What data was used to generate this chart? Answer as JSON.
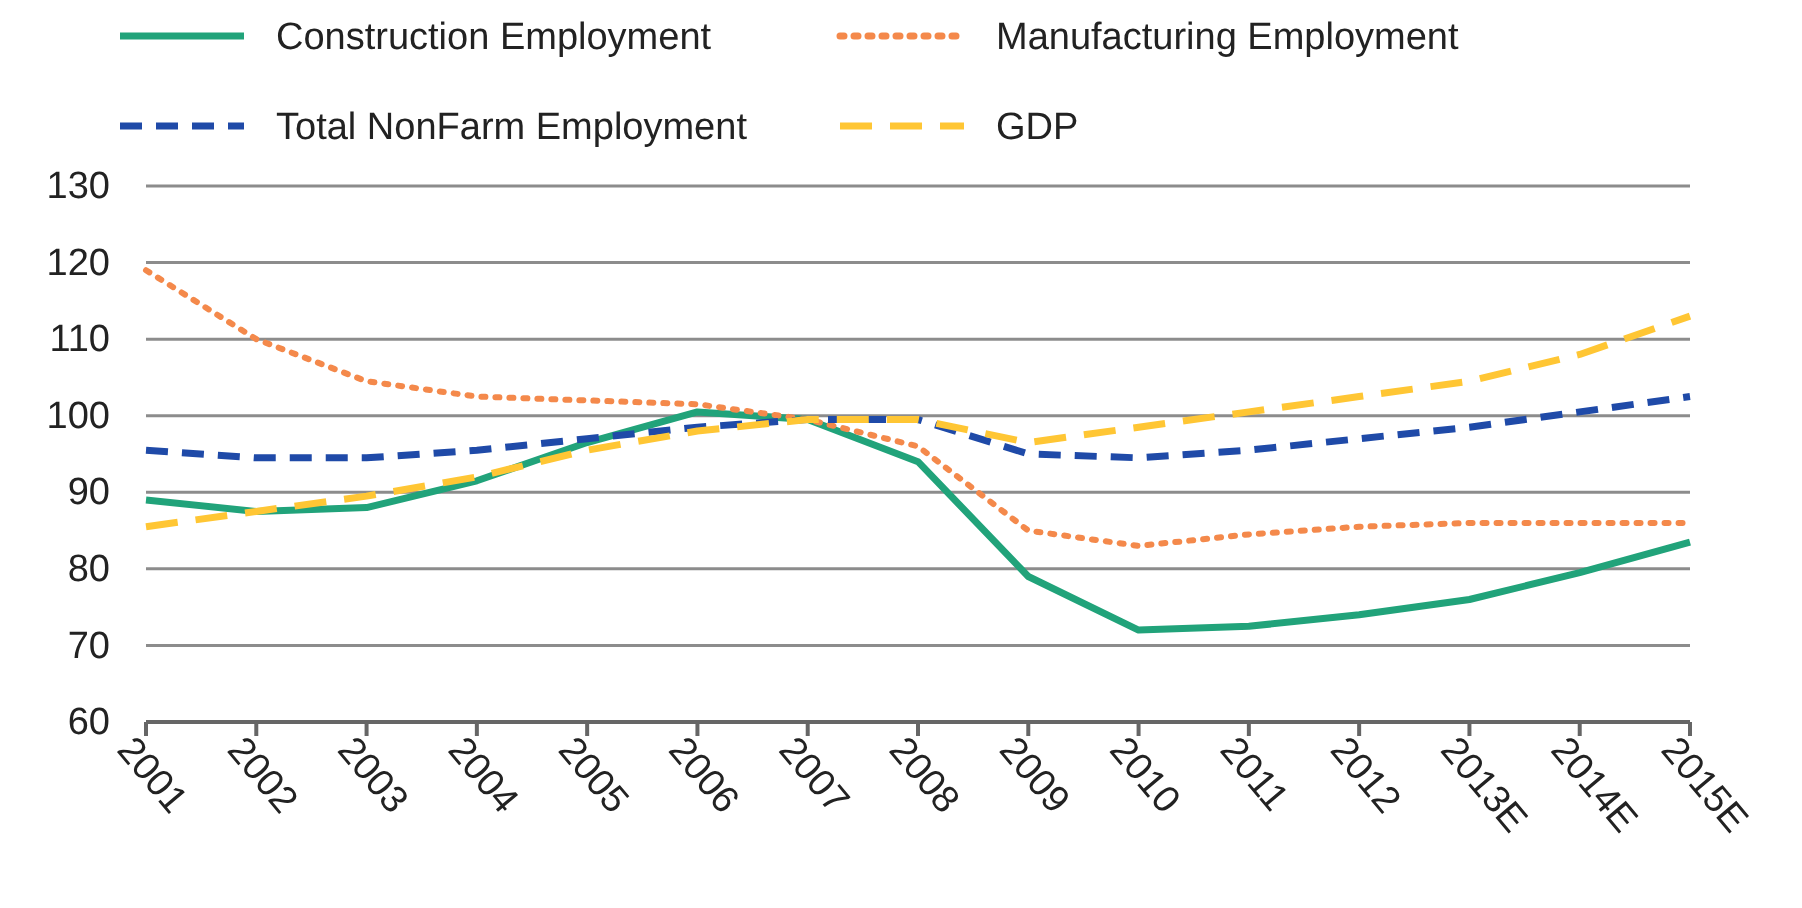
{
  "chart_data": {
    "type": "line",
    "categories": [
      "2001",
      "2002",
      "2003",
      "2004",
      "2005",
      "2006",
      "2007",
      "2008",
      "2009",
      "2010",
      "2011",
      "2012",
      "2013E",
      "2014E",
      "2015E"
    ],
    "series": [
      {
        "name": "Construction Employment",
        "color": "#21a37a",
        "line_style": "solid",
        "values": [
          89,
          87.5,
          88,
          91.5,
          96.5,
          100.5,
          99.5,
          94,
          79,
          72,
          72.5,
          74,
          76,
          79.5,
          83.5
        ]
      },
      {
        "name": "Manufacturing Employment",
        "color": "#f4894b",
        "line_style": "dotted",
        "values": [
          119,
          110,
          104.5,
          102.5,
          102,
          101.5,
          99.5,
          96,
          85,
          83,
          84.5,
          85.5,
          86,
          86,
          86
        ]
      },
      {
        "name": "Total NonFarm Employment",
        "color": "#1f4aa8",
        "line_style": "dashed",
        "values": [
          95.5,
          94.5,
          94.5,
          95.5,
          97,
          98.5,
          99.5,
          99.5,
          95,
          94.5,
          95.5,
          97,
          98.5,
          100.5,
          102.5
        ]
      },
      {
        "name": "GDP",
        "color": "#ffc634",
        "line_style": "dashed",
        "values": [
          85.5,
          87.5,
          89.5,
          92,
          95.5,
          98,
          99.5,
          99.5,
          96.5,
          98.5,
          100.5,
          102.5,
          104.5,
          108,
          113
        ]
      }
    ],
    "ylim": [
      60,
      130
    ],
    "yticks": [
      60,
      70,
      80,
      90,
      100,
      110,
      120,
      130
    ],
    "grid": "y",
    "legend": "top",
    "marker": "none"
  }
}
